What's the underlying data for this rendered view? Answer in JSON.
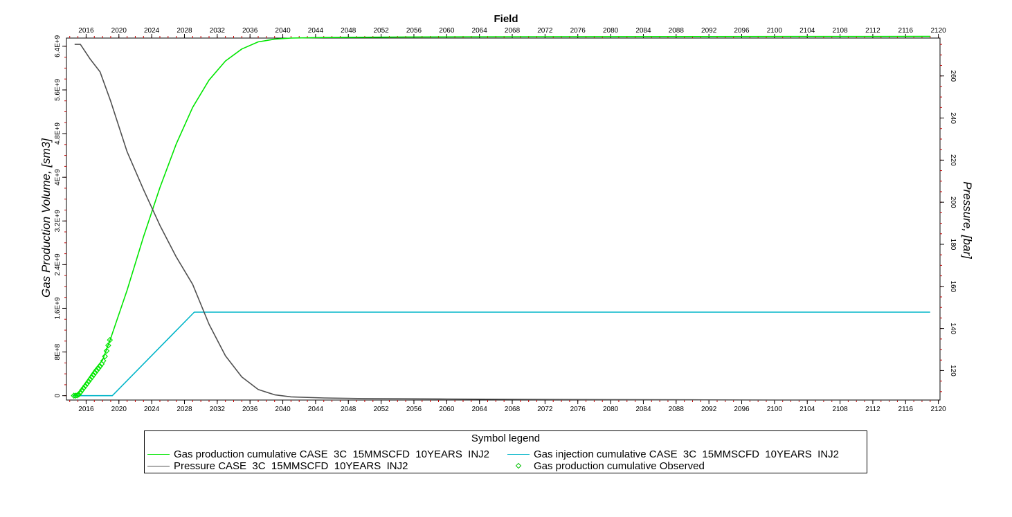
{
  "chart_data": {
    "type": "line",
    "title": "Field",
    "ylabel_left": "Gas Production Volume, [sm3]",
    "ylabel_right": "Pressure, [bar]",
    "xlim": [
      2013.6,
      2120.2
    ],
    "ylim_left": [
      -80000000.0,
      6550000000.0
    ],
    "ylim_right": [
      106,
      278
    ],
    "x_ticks": [
      2016,
      2020,
      2024,
      2028,
      2032,
      2036,
      2040,
      2044,
      2048,
      2052,
      2056,
      2060,
      2064,
      2068,
      2072,
      2076,
      2080,
      2084,
      2088,
      2092,
      2096,
      2100,
      2104,
      2108,
      2112,
      2116,
      2120
    ],
    "y_left_ticks": [
      {
        "value": 0,
        "label": "0"
      },
      {
        "value": 800000000.0,
        "label": "8E+8"
      },
      {
        "value": 1600000000.0,
        "label": "1.6E+9"
      },
      {
        "value": 2400000000.0,
        "label": "2.4E+9"
      },
      {
        "value": 3200000000.0,
        "label": "3.2E+9"
      },
      {
        "value": 4000000000.0,
        "label": "4E+9"
      },
      {
        "value": 4800000000.0,
        "label": "4.8E+9"
      },
      {
        "value": 5600000000.0,
        "label": "5.6E+9"
      },
      {
        "value": 6400000000.0,
        "label": "6.4E+9"
      }
    ],
    "y_right_ticks": [
      120,
      140,
      160,
      180,
      200,
      220,
      240,
      260
    ],
    "series": [
      {
        "name": "Gas production cumulative CASE  3C  15MMSCFD  10YEARS  INJ2",
        "axis": "left",
        "color": "#00e600",
        "x": [
          2014.4,
          2015.0,
          2016.0,
          2017.0,
          2018.0,
          2019.0,
          2021.0,
          2023.0,
          2025.0,
          2027.0,
          2029.0,
          2031.0,
          2033.0,
          2035.0,
          2037.0,
          2039.0,
          2041.0,
          2045.0,
          2055.0,
          2070.0,
          2090.0,
          2119.0
        ],
        "values": [
          0.0,
          30000000.0,
          250000000.0,
          470000000.0,
          650000000.0,
          1050000000.0,
          1930000000.0,
          2910000000.0,
          3810000000.0,
          4610000000.0,
          5280000000.0,
          5780000000.0,
          6130000000.0,
          6350000000.0,
          6480000000.0,
          6530000000.0,
          6550000000.0,
          6560000000.0,
          6570000000.0,
          6575000000.0,
          6578000000.0,
          6580000000.0
        ]
      },
      {
        "name": "Gas injection cumulative CASE  3C  15MMSCFD  10YEARS  INJ2",
        "axis": "left",
        "color": "#00b5c8",
        "x": [
          2014.4,
          2019.2,
          2029.2,
          2119.0
        ],
        "values": [
          0.0,
          0.0,
          1530000000.0,
          1530000000.0
        ]
      },
      {
        "name": "Pressure CASE  3C  15MMSCFD  10YEARS  INJ2",
        "axis": "right",
        "color": "#505050",
        "x": [
          2014.6,
          2015.3,
          2016.5,
          2017.7,
          2019.0,
          2021.0,
          2023.0,
          2025.0,
          2027.0,
          2029.0,
          2031.0,
          2033.0,
          2035.0,
          2037.0,
          2039.0,
          2041.0,
          2045.0,
          2050.0,
          2060.0,
          2070.0,
          2080.0,
          2090.0,
          2100.0,
          2119.0
        ],
        "values": [
          275,
          275,
          268,
          262,
          248,
          224,
          206,
          189,
          174,
          161,
          142,
          127,
          117,
          111,
          108.5,
          107.5,
          107.0,
          106.7,
          106.5,
          106.3,
          106.2,
          106.1,
          106.0,
          106.0
        ]
      },
      {
        "name": "Gas production cumulative Observed",
        "axis": "left",
        "color": "#00e600",
        "marker": "diamond",
        "x": [
          2014.5,
          2014.7,
          2014.9,
          2015.1,
          2015.3,
          2015.5,
          2015.7,
          2015.9,
          2016.1,
          2016.3,
          2016.5,
          2016.7,
          2016.9,
          2017.1,
          2017.3,
          2017.5,
          2017.7,
          2017.9,
          2018.1,
          2018.3,
          2018.5,
          2018.7,
          2018.9
        ],
        "values": [
          0.0,
          0.0,
          5000000.0,
          20000000.0,
          60000000.0,
          100000000.0,
          140000000.0,
          180000000.0,
          220000000.0,
          260000000.0,
          300000000.0,
          340000000.0,
          380000000.0,
          420000000.0,
          460000000.0,
          500000000.0,
          540000000.0,
          580000000.0,
          640000000.0,
          720000000.0,
          820000000.0,
          920000000.0,
          1020000000.0
        ]
      }
    ]
  },
  "legend": {
    "title": "Symbol legend",
    "items": [
      {
        "label": "Gas production cumulative CASE  3C  15MMSCFD  10YEARS  INJ2",
        "color": "#00e600"
      },
      {
        "label": "Gas injection cumulative CASE  3C  15MMSCFD  10YEARS  INJ2",
        "color": "#00b5c8"
      },
      {
        "label": "Pressure CASE  3C  15MMSCFD  10YEARS  INJ2",
        "color": "#505050"
      },
      {
        "label": "Gas production cumulative Observed",
        "color": "#00e600"
      }
    ]
  }
}
